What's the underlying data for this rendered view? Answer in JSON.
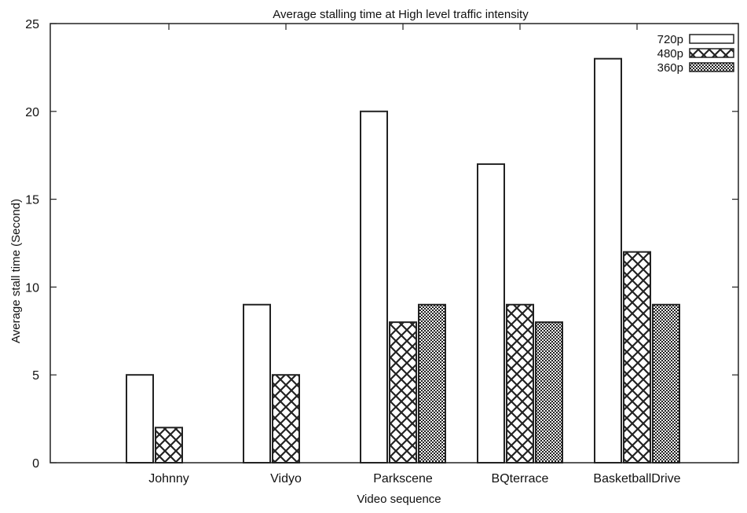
{
  "chart_data": {
    "type": "bar",
    "title": "Average stalling time at High level traffic intensity",
    "xlabel": "Video sequence",
    "ylabel": "Average stall time (Second)",
    "categories": [
      "Johnny",
      "Vidyo",
      "Parkscene",
      "BQterrace",
      "BasketballDrive"
    ],
    "ylim": [
      0,
      25
    ],
    "yticks": [
      "0",
      "5",
      "10",
      "15",
      "20",
      "25"
    ],
    "legend_position": "top-right",
    "grid": false,
    "series": [
      {
        "name": "720p",
        "pattern": "empty",
        "values": [
          5,
          9,
          20,
          17,
          23
        ]
      },
      {
        "name": "480p",
        "pattern": "crosshatch",
        "values": [
          2,
          5,
          8,
          9,
          12
        ]
      },
      {
        "name": "360p",
        "pattern": "dense-checker",
        "values": [
          0,
          0,
          9,
          8,
          9
        ]
      }
    ]
  }
}
